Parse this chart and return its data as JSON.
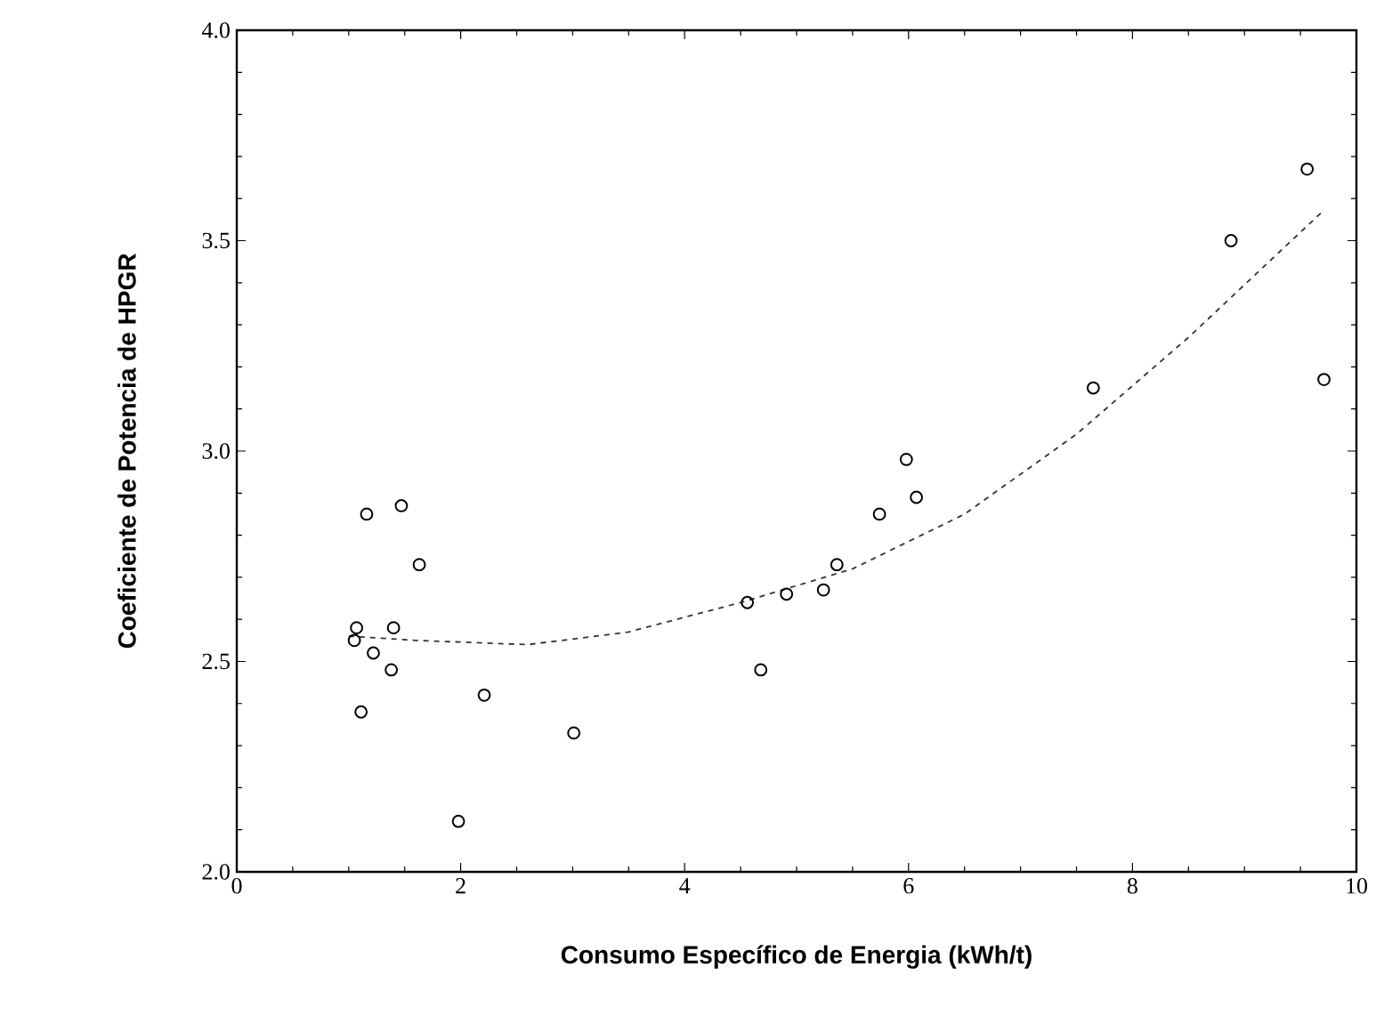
{
  "chart_data": {
    "type": "scatter",
    "xlabel": "Consumo Específico de Energia (kWh/t)",
    "ylabel": "Coeficiente de Potencia de HPGR",
    "xlim": [
      0,
      10
    ],
    "ylim": [
      2.0,
      4.0
    ],
    "xticks": [
      0,
      2,
      4,
      6,
      8,
      10
    ],
    "yticks": [
      {
        "value": 2.0,
        "label": "2.0"
      },
      {
        "value": 2.5,
        "label": "2.5"
      },
      {
        "value": 3.0,
        "label": "3.0"
      },
      {
        "value": 3.5,
        "label": "3.5"
      },
      {
        "value": 4.0,
        "label": "4.0"
      }
    ],
    "grid": false,
    "series": [
      {
        "marker": "circle",
        "color": "#000000",
        "x": [
          1.16,
          1.47,
          1.63,
          1.07,
          1.05,
          1.22,
          1.4,
          1.38,
          1.11,
          2.21,
          1.98,
          3.01,
          5.98,
          6.07,
          5.74,
          5.36,
          5.24,
          4.91,
          4.56,
          4.68,
          9.56,
          8.88,
          7.65,
          9.71
        ],
        "values": [
          2.85,
          2.87,
          2.73,
          2.58,
          2.55,
          2.52,
          2.58,
          2.48,
          2.38,
          2.42,
          2.12,
          2.33,
          2.98,
          2.89,
          2.85,
          2.73,
          2.67,
          2.66,
          2.64,
          2.48,
          3.67,
          3.5,
          3.15,
          3.17
        ]
      },
      {
        "type": "line",
        "marker": "none",
        "color": "#333333",
        "line_style": "dashed",
        "x": [
          1.0,
          1.6,
          2.6,
          3.5,
          4.5,
          5.5,
          6.5,
          7.5,
          8.5,
          9.7
        ],
        "values": [
          2.56,
          2.55,
          2.54,
          2.57,
          2.64,
          2.72,
          2.85,
          3.04,
          3.27,
          3.57
        ]
      }
    ]
  }
}
